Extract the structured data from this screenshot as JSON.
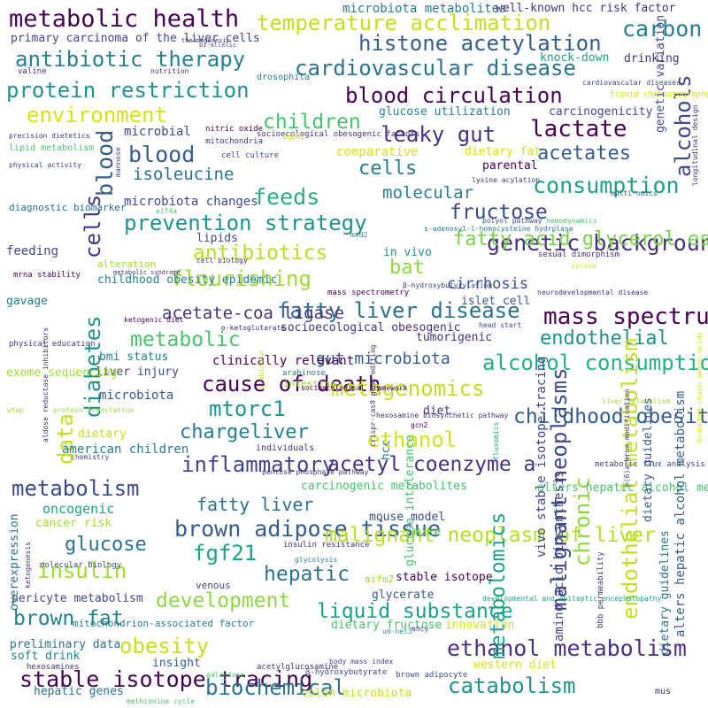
{
  "words": [
    "metabolic health",
    "temperature acclimation",
    "carbon",
    "histone acetylation",
    "antibiotic therapy",
    "cardiovascular disease",
    "protein restriction",
    "blood circulation",
    "environment",
    "children",
    "lactate",
    "leaky gut",
    "blood",
    "cells",
    "acetates",
    "consumption",
    "isoleucine",
    "feeds",
    "fructose",
    "prevention strategy",
    "genetic background",
    "fatty acid glycerol esters",
    "antibiotics",
    "bat",
    "flourishing",
    "cirrhosis",
    "fatty liver disease",
    "mass spectrum analysis",
    "acetate-coa ligase",
    "diabetes",
    "metabolic",
    "endothelial",
    "alcohol consumption",
    "data",
    "gut microbiota",
    "cause of death",
    "metagenomics",
    "mtorc1",
    "childhood obesity",
    "chargeliver",
    "ethanol",
    "inflammatory",
    "acetyl coenzyme a",
    "metabolism",
    "fatty liver",
    "brown adipose tissue",
    "malignant neoplasm of liver",
    "glucose",
    "fgf21",
    "hepatic",
    "insulin",
    "development",
    "liquid substance",
    "brown fat",
    "obesity",
    "ethanol metabolism",
    "stable isotope tracing",
    "biochemical",
    "catabolism",
    "inflammation",
    "alcoholism",
    "metabolomics",
    "malignant neoplasms",
    "chronic",
    "endothelial metabolism",
    "alcohols",
    "microbiota metabolites",
    "well-known hcc risk factor",
    "primary carcinoma of the liver cells",
    "knock-down",
    "drinking",
    "glucose utilization",
    "carcinogenicity",
    "microbial",
    "dietary fat",
    "comparative",
    "parental",
    "molecular",
    "microbiota changes",
    "lipids",
    "feeding",
    "in vivo",
    "alteration",
    "childhood obesity epidemic",
    "gavage",
    "socioecological obesogenic",
    "islet cell",
    "tumorigenic",
    "bmi status",
    "liver injury",
    "clinically relevant",
    "microbiota",
    "intestine",
    "diet",
    "hcc",
    "dietary",
    "american children",
    "carcinogenic metabolites",
    "oncogenic",
    "cancer risk",
    "mouse model",
    "mice",
    "glucose intolerance",
    "amino acid biosynthesis",
    "vivo stable isotope tracing",
    "dietary guidelines",
    "alters hepatic alcohol metabolism",
    "pericyte metabolism",
    "venous",
    "stable isotope",
    "glycerate",
    "aifm2",
    "overexpression",
    "preliminary data",
    "dietary fructose",
    "innovation",
    "soft drink",
    "insight",
    "western diet",
    "hepatic genes",
    "colon microbiota",
    "diagnostic biomarker",
    "mitochondrion-associated factor",
    "individuals",
    "genetic variation",
    "exome sequencing",
    "bbb permeability",
    "mus",
    "hexosamines",
    "acetylglucosamine",
    "drosophila",
    "cardiovascular diseases",
    "liquid chromatography-mass spectrometry (lc-ms)",
    "longitudinal design",
    "nitric oxide",
    "socioecological obesogenic factors",
    "mitochondria",
    "cell culture",
    "ogdh1",
    "mannose",
    "lysine acylation",
    "multi-omics",
    "hemodynamics",
    "eif4a",
    "s-adenosyl-l-homocysteine hydrolase",
    "polyol pathway",
    "mxd2",
    "cell biology",
    "mrna stability",
    "β-hydroxybutyrylation",
    "sexual dimorphism",
    "xylose",
    "neurodevelopmental disease",
    "mass spectrometry",
    "ketogenic diet",
    "α-ketoglutarate",
    "head start",
    "physical education",
    "aldose reductase inhibitors",
    "arabinose",
    "hexosamine biosynthetic pathway",
    "crispr-cas9 gene editing",
    "gcn2",
    "fluxomics",
    "m(6)a mrna modification",
    "liver metabolism",
    "branched-chain amino acids",
    "protein translation",
    "chemistry",
    "pentose phosphate pathway",
    "metabolic flux analysis",
    "insulin resistance",
    "glycolysis",
    "molecular biology",
    "ketogenesis",
    "ahcy",
    "β-hydroxybutyrate",
    "body mass index",
    "galactose",
    "brown adipocyte",
    "methionine cycle",
    "um-het3",
    "developmental and epileptic encephalopathy",
    "socioecological framework",
    "wtap",
    "valine",
    "nutrition",
    "precision dietetics",
    "lipid metabolism",
    "physical activity",
    "bi-allelic",
    "thermogenesis",
    "metabolic syndrome",
    "cmyc",
    "s6k1"
  ],
  "palette": {
    "background": "#ffffff",
    "dark_purple": "#440154",
    "indigo": "#46327e",
    "blue": "#365c8d",
    "teal_blue": "#277f8e",
    "teal": "#1fa187",
    "green": "#4ac16d",
    "lime": "#a0da39",
    "yellow": "#d4e21a"
  }
}
